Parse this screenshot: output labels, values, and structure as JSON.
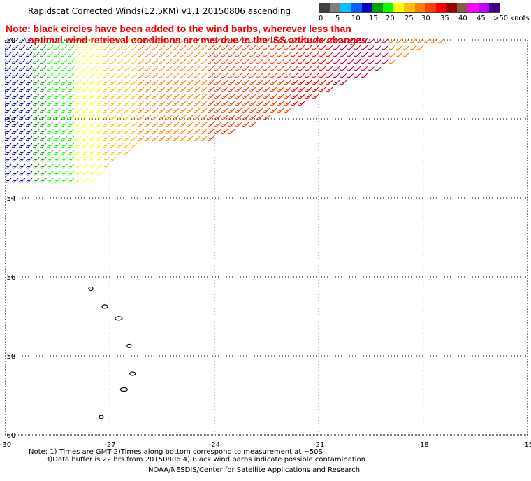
{
  "title": "Rapidscat Corrected Winds(12.5KM) v1.1 20150806 ascending",
  "note": {
    "line1": "Note: black circles have been added to the wind barbs, wherever less than",
    "line2": "optimal wind retrieval conditions are met due to the ISS attitude changes."
  },
  "legend": {
    "colors": [
      "#404040",
      "#808080",
      "#00c0ff",
      "#0060ff",
      "#0000c0",
      "#00a000",
      "#00ff00",
      "#ffff00",
      "#ffc000",
      "#ff8000",
      "#ff4000",
      "#ff0000",
      "#a00000",
      "#806040",
      "#ff00ff",
      "#c000ff",
      "#400080"
    ],
    "labels": [
      "0",
      "5",
      "10",
      "15",
      "20",
      "25",
      "30",
      "35",
      "40",
      "45",
      ">50 knots"
    ]
  },
  "axes": {
    "lon_labels": [
      "-30",
      "-27",
      "-24",
      "-21",
      "-18",
      "-15"
    ],
    "lat_labels": [
      "-50",
      "-52",
      "-54",
      "-56",
      "-58",
      "-60"
    ],
    "lon_range": [
      -30,
      -15
    ],
    "lat_range": [
      -50,
      -60
    ]
  },
  "islands": [
    {
      "lon": -27.55,
      "lat": -56.3
    },
    {
      "lon": -27.15,
      "lat": -56.75
    },
    {
      "lon": -26.75,
      "lat": -57.05
    },
    {
      "lon": -26.45,
      "lat": -57.75
    },
    {
      "lon": -26.35,
      "lat": -58.45
    },
    {
      "lon": -26.6,
      "lat": -58.85
    },
    {
      "lon": -27.25,
      "lat": -59.55
    }
  ],
  "footer": {
    "line1": "Note: 1) Times are GMT 2)Times along bottom correspond to measurement at ~50S",
    "line2": "3)Data buffer is 22 hrs from 20150806 4) Black wind barbs indicate possible contamination",
    "line3": "NOAA/NESDIS/Center for Satellite Applications and Research"
  }
}
